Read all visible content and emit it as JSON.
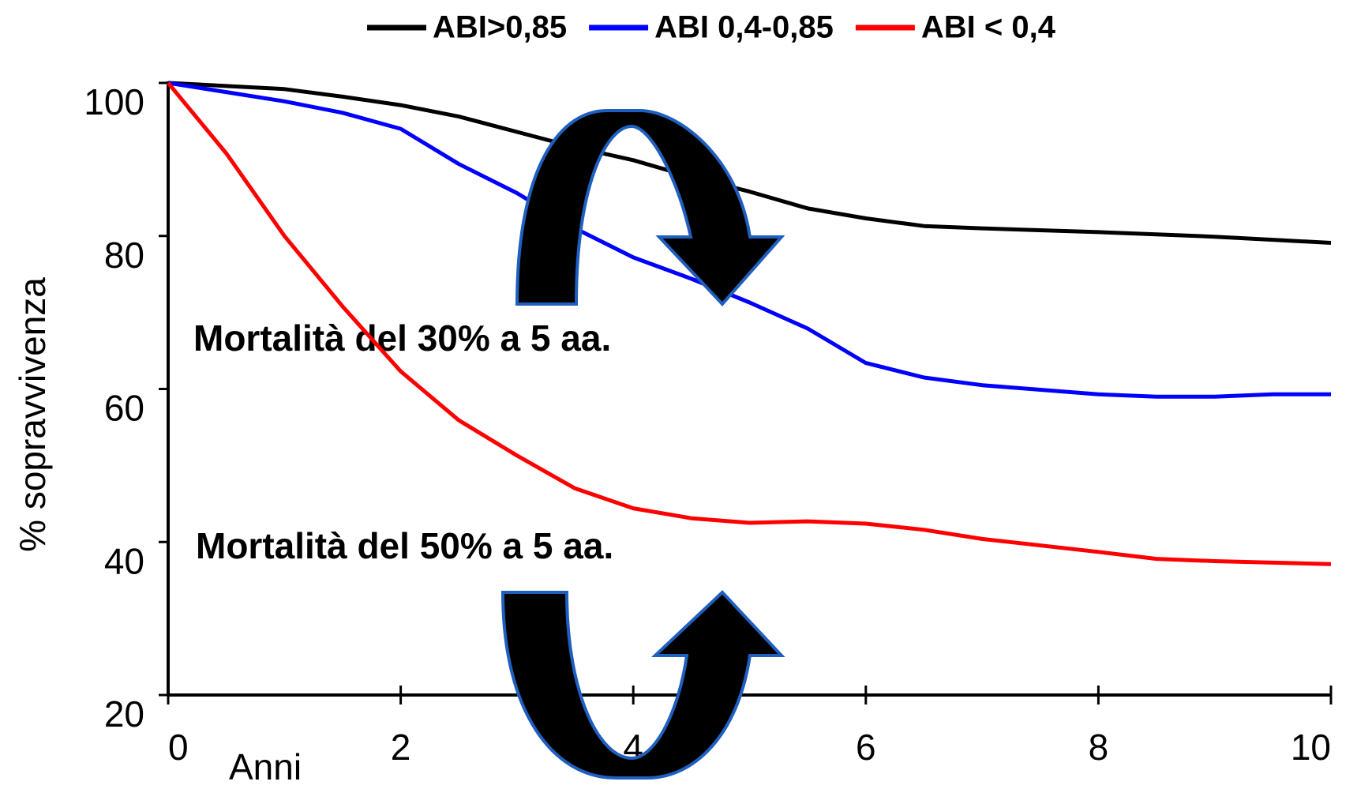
{
  "chart_data": {
    "type": "line",
    "x": [
      0,
      0.25,
      0.5,
      1,
      1.5,
      2,
      2.5,
      3,
      3.5,
      4,
      4.5,
      5,
      5.5,
      6,
      6.5,
      7,
      8,
      8.5,
      9,
      9.5,
      10
    ],
    "series": [
      {
        "name": "ABI>0,85",
        "color": "#000000",
        "values": [
          100,
          99.8,
          99.6,
          99.2,
          98.2,
          97.1,
          95.6,
          93.6,
          91.6,
          89.9,
          87.7,
          85.8,
          83.6,
          82.3,
          81.3,
          81,
          80.5,
          80.2,
          79.9,
          79.5,
          79.1
        ]
      },
      {
        "name": "ABI 0,4-0,85",
        "color": "#0000ff",
        "values": [
          100,
          99.4,
          98.8,
          97.6,
          96.1,
          94,
          89.4,
          85.6,
          81,
          77.2,
          74.4,
          71.3,
          67.9,
          63.4,
          61.5,
          60.5,
          59.3,
          59,
          59,
          59.3,
          59.3
        ]
      },
      {
        "name": "ABI < 0,4",
        "color": "#ff0000",
        "values": [
          100,
          95.4,
          90.8,
          80,
          70.8,
          62.3,
          55.9,
          51.3,
          47,
          44.4,
          43.1,
          42.5,
          42.7,
          42.4,
          41.6,
          40.4,
          38.7,
          37.8,
          37.5,
          37.3,
          37.1
        ]
      }
    ],
    "xlim": [
      0,
      10
    ],
    "xticks": [
      0,
      2,
      4,
      6,
      8,
      10
    ],
    "ylim": [
      20,
      100
    ],
    "yticks": [
      20,
      40,
      60,
      80,
      100
    ],
    "x_label": "Anni",
    "y_label": "% sopravvivenza",
    "annotations": [
      "Mortalità del 30% a 5 aa.",
      "Mortalità del 50% a 5 aa."
    ],
    "legend": "top"
  }
}
